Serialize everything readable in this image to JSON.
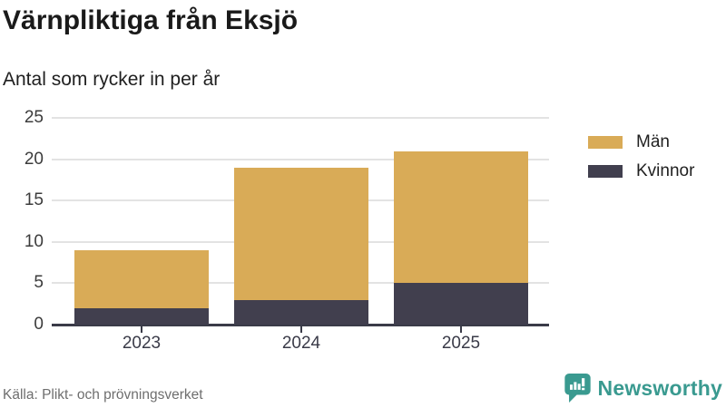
{
  "header": {
    "title": "Värnpliktiga från Eksjö",
    "subtitle": "Antal som rycker in per år"
  },
  "chart_data": {
    "type": "bar",
    "stacked": true,
    "title": "Värnpliktiga från Eksjö",
    "subtitle": "Antal som rycker in per år",
    "categories": [
      "2023",
      "2024",
      "2025"
    ],
    "series": [
      {
        "name": "Kvinnor",
        "values": [
          2,
          3,
          5
        ],
        "color": "#413f4e"
      },
      {
        "name": "Män",
        "values": [
          7,
          16,
          16
        ],
        "color": "#d9ab57"
      }
    ],
    "totals": [
      9,
      19,
      21
    ],
    "xlabel": "",
    "ylabel": "",
    "ylim": [
      0,
      25
    ],
    "yticks": [
      0,
      5,
      10,
      15,
      20,
      25
    ],
    "grid": "horizontal",
    "legend_position": "right"
  },
  "legend": {
    "items": [
      {
        "label": "Män",
        "color": "#d9ab57"
      },
      {
        "label": "Kvinnor",
        "color": "#413f4e"
      }
    ]
  },
  "footer": {
    "source": "Källa: Plikt- och prövningsverket",
    "brand": "Newsworthy"
  },
  "colors": {
    "man_gold": "#d9ab57",
    "kvinnor_dark": "#413f4e",
    "axis": "#3a3b48",
    "gridline": "#e3e3e3",
    "brand_teal": "#3a9a90",
    "title_text": "#1a1a1a",
    "source_text": "#6e6e6e"
  }
}
